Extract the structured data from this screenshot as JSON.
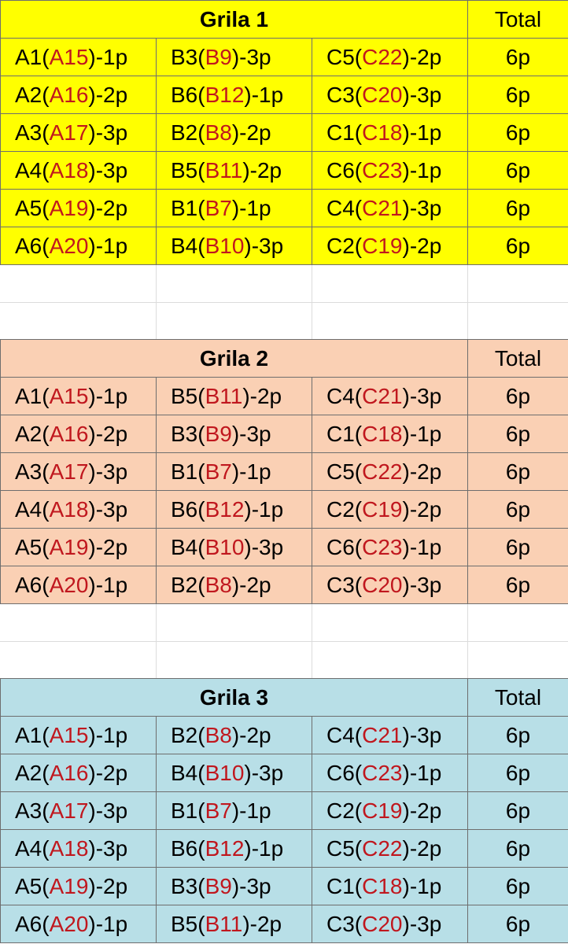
{
  "colors": {
    "grila1_bg": "#ffff00",
    "grila2_bg": "#fad0b4",
    "grila3_bg": "#b8dfe7",
    "highlight_text": "#c0171e"
  },
  "grids": [
    {
      "title": "Grila 1",
      "total_label": "Total",
      "rows": [
        {
          "cells": [
            [
              "A1(",
              "A15",
              ")-1p"
            ],
            [
              "B3(",
              "B9",
              ")-3p"
            ],
            [
              "C5(",
              "C22",
              ")-2p"
            ]
          ],
          "total": "6p"
        },
        {
          "cells": [
            [
              "A2(",
              "A16",
              ")-2p"
            ],
            [
              "B6(",
              "B12",
              ")-1p"
            ],
            [
              "C3(",
              "C20",
              ")-3p"
            ]
          ],
          "total": "6p"
        },
        {
          "cells": [
            [
              "A3(",
              "A17",
              ")-3p"
            ],
            [
              "B2(",
              "B8",
              ")-2p"
            ],
            [
              "C1(",
              "C18",
              ")-1p"
            ]
          ],
          "total": "6p"
        },
        {
          "cells": [
            [
              "A4(",
              "A18",
              ")-3p"
            ],
            [
              "B5(",
              "B11",
              ")-2p"
            ],
            [
              "C6(",
              "C23",
              ")-1p"
            ]
          ],
          "total": "6p"
        },
        {
          "cells": [
            [
              "A5(",
              "A19",
              ")-2p"
            ],
            [
              "B1(",
              "B7",
              ")-1p"
            ],
            [
              "C4(",
              "C21",
              ")-3p"
            ]
          ],
          "total": "6p"
        },
        {
          "cells": [
            [
              "A6(",
              "A20",
              ")-1p"
            ],
            [
              "B4(",
              "B10",
              ")-3p"
            ],
            [
              "C2(",
              "C19",
              ")-2p"
            ]
          ],
          "total": "6p"
        }
      ]
    },
    {
      "title": "Grila 2",
      "total_label": "Total",
      "rows": [
        {
          "cells": [
            [
              "A1(",
              "A15",
              ")-1p"
            ],
            [
              "B5(",
              "B11",
              ")-2p"
            ],
            [
              "C4(",
              "C21",
              ")-3p"
            ]
          ],
          "total": "6p"
        },
        {
          "cells": [
            [
              "A2(",
              "A16",
              ")-2p"
            ],
            [
              "B3(",
              "B9",
              ")-3p"
            ],
            [
              "C1(",
              "C18",
              ")-1p"
            ]
          ],
          "total": "6p"
        },
        {
          "cells": [
            [
              "A3(",
              "A17",
              ")-3p"
            ],
            [
              "B1(",
              "B7",
              ")-1p"
            ],
            [
              "C5(",
              "C22",
              ")-2p"
            ]
          ],
          "total": "6p"
        },
        {
          "cells": [
            [
              "A4(",
              "A18",
              ")-3p"
            ],
            [
              "B6(",
              "B12",
              ")-1p"
            ],
            [
              "C2(",
              "C19",
              ")-2p"
            ]
          ],
          "total": "6p"
        },
        {
          "cells": [
            [
              "A5(",
              "A19",
              ")-2p"
            ],
            [
              "B4(",
              "B10",
              ")-3p"
            ],
            [
              "C6(",
              "C23",
              ")-1p"
            ]
          ],
          "total": "6p"
        },
        {
          "cells": [
            [
              "A6(",
              "A20",
              ")-1p"
            ],
            [
              "B2(",
              "B8",
              ")-2p"
            ],
            [
              "C3(",
              "C20",
              ")-3p"
            ]
          ],
          "total": "6p"
        }
      ]
    },
    {
      "title": "Grila 3",
      "total_label": "Total",
      "rows": [
        {
          "cells": [
            [
              "A1(",
              "A15",
              ")-1p"
            ],
            [
              "B2(",
              "B8",
              ")-2p"
            ],
            [
              "C4(",
              "C21",
              ")-3p"
            ]
          ],
          "total": "6p"
        },
        {
          "cells": [
            [
              "A2(",
              "A16",
              ")-2p"
            ],
            [
              "B4(",
              "B10",
              ")-3p"
            ],
            [
              "C6(",
              "C23",
              ")-1p"
            ]
          ],
          "total": "6p"
        },
        {
          "cells": [
            [
              "A3(",
              "A17",
              ")-3p"
            ],
            [
              "B1(",
              "B7",
              ")-1p"
            ],
            [
              "C2(",
              "C19",
              ")-2p"
            ]
          ],
          "total": "6p"
        },
        {
          "cells": [
            [
              "A4(",
              "A18",
              ")-3p"
            ],
            [
              "B6(",
              "B12",
              ")-1p"
            ],
            [
              "C5(",
              "C22",
              ")-2p"
            ]
          ],
          "total": "6p"
        },
        {
          "cells": [
            [
              "A5(",
              "A19",
              ")-2p"
            ],
            [
              "B3(",
              "B9",
              ")-3p"
            ],
            [
              "C1(",
              "C18",
              ")-1p"
            ]
          ],
          "total": "6p"
        },
        {
          "cells": [
            [
              "A6(",
              "A20",
              ")-1p"
            ],
            [
              "B5(",
              "B11",
              ")-2p"
            ],
            [
              "C3(",
              "C20",
              ")-3p"
            ]
          ],
          "total": "6p"
        }
      ]
    }
  ]
}
